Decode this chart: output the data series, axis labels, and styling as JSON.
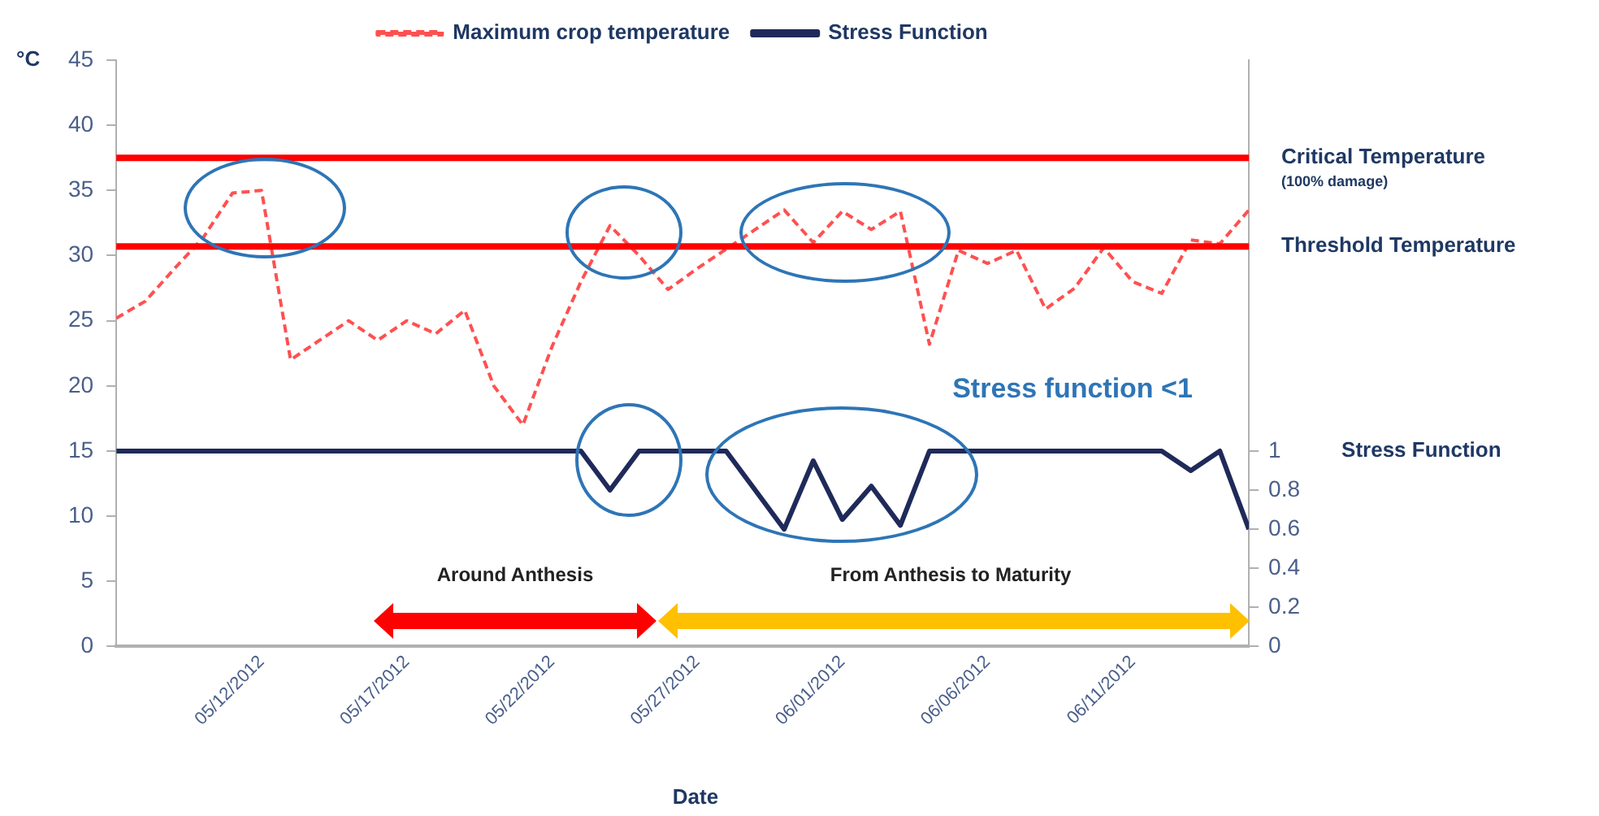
{
  "chart_data": {
    "type": "line",
    "ylabel": "°C",
    "xlabel": "Date",
    "y2label": "Stress Function",
    "x": [
      "2012-05-07",
      "2012-05-08",
      "2012-05-09",
      "2012-05-10",
      "2012-05-11",
      "2012-05-12",
      "2012-05-13",
      "2012-05-14",
      "2012-05-15",
      "2012-05-16",
      "2012-05-17",
      "2012-05-18",
      "2012-05-19",
      "2012-05-20",
      "2012-05-21",
      "2012-05-22",
      "2012-05-23",
      "2012-05-24",
      "2012-05-25",
      "2012-05-26",
      "2012-05-27",
      "2012-05-28",
      "2012-05-29",
      "2012-05-30",
      "2012-05-31",
      "2012-06-01",
      "2012-06-02",
      "2012-06-03",
      "2012-06-04",
      "2012-06-05",
      "2012-06-06",
      "2012-06-07",
      "2012-06-08",
      "2012-06-09",
      "2012-06-10",
      "2012-06-11",
      "2012-06-12",
      "2012-06-13",
      "2012-06-14",
      "2012-06-15"
    ],
    "series": [
      {
        "name": "Maximum crop temperature",
        "color": "#ff5050",
        "line_style": "dashed",
        "values": [
          25.2,
          26.5,
          29,
          31.4,
          34.8,
          35,
          22,
          23.5,
          25,
          23.5,
          25,
          24,
          25.8,
          20,
          17,
          23,
          28,
          32.3,
          30,
          27.4,
          29,
          30.5,
          32,
          33.5,
          31,
          33.4,
          32,
          33.4,
          23.2,
          30.4,
          29.4,
          30.4,
          25.9,
          27.5,
          30.6,
          28,
          27.1,
          31.2,
          30.9,
          33.5
        ]
      },
      {
        "name": "Stress Function",
        "color": "#1f2a5a",
        "line_style": "solid",
        "axis": "y2",
        "values": [
          1,
          1,
          1,
          1,
          1,
          1,
          1,
          1,
          1,
          1,
          1,
          1,
          1,
          1,
          1,
          1,
          1,
          0.8,
          1,
          1,
          1,
          1,
          0.8,
          0.6,
          0.95,
          0.65,
          0.82,
          0.62,
          1,
          1,
          1,
          1,
          1,
          1,
          1,
          1,
          1,
          0.9,
          1,
          0.6
        ]
      }
    ],
    "xlim": [
      "2012-05-07",
      "2012-06-15"
    ],
    "xticks": [
      {
        "value": "2012-05-12",
        "label": "05/12/2012"
      },
      {
        "value": "2012-05-17",
        "label": "05/17/2012"
      },
      {
        "value": "2012-05-22",
        "label": "05/22/2012"
      },
      {
        "value": "2012-05-27",
        "label": "05/27/2012"
      },
      {
        "value": "2012-06-01",
        "label": "06/01/2012"
      },
      {
        "value": "2012-06-06",
        "label": "06/06/2012"
      },
      {
        "value": "2012-06-11",
        "label": "06/11/2012"
      }
    ],
    "ylim": [
      0,
      45
    ],
    "yticks": [
      0,
      5,
      10,
      15,
      20,
      25,
      30,
      35,
      40,
      45
    ],
    "y2lim": [
      0,
      3
    ],
    "y2ticks": [
      0,
      0.2,
      0.4,
      0.6,
      0.8,
      1
    ],
    "ref_lines": [
      {
        "axis": "y",
        "value": 37.5,
        "label": "Critical Temperature",
        "color": "#ff0000"
      },
      {
        "axis": "y",
        "value": 30.7,
        "label": "Threshold Temperature",
        "color": "#ff0000"
      }
    ],
    "annotations": [
      "(100% damage)",
      "Stress function <1",
      "Around Anthesis",
      "From Anthesis to Maturity"
    ],
    "legend": "top"
  }
}
